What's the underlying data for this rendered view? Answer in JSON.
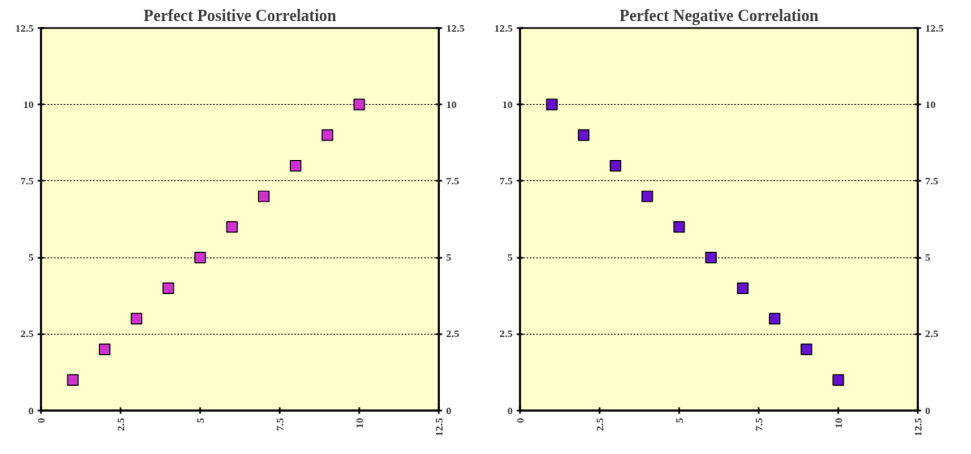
{
  "chart_data": [
    {
      "type": "scatter",
      "title": "Perfect Positive Correlation",
      "x": [
        1,
        2,
        3,
        4,
        5,
        6,
        7,
        8,
        9,
        10
      ],
      "series": [
        {
          "color": "#cc33cc",
          "values": [
            1,
            2,
            3,
            4,
            5,
            6,
            7,
            8,
            9,
            10
          ]
        }
      ],
      "xlim": [
        0,
        12.5
      ],
      "xticks": [
        0,
        2.5,
        5,
        7.5,
        10,
        12.5
      ],
      "ylim": [
        0,
        12.5
      ],
      "yticks": [
        0,
        2.5,
        5,
        7.5,
        10,
        12.5
      ],
      "y2lim": [
        0,
        12.5
      ],
      "y2ticks": [
        0,
        2.5,
        5,
        7.5,
        10,
        12.5
      ],
      "grid": "y",
      "marker": "square"
    },
    {
      "type": "scatter",
      "title": "Perfect Negative Correlation",
      "x": [
        1,
        2,
        3,
        4,
        5,
        6,
        7,
        8,
        9,
        10
      ],
      "series": [
        {
          "color": "#6611cc",
          "values": [
            10,
            9,
            8,
            7,
            6,
            5,
            4,
            3,
            2,
            1
          ]
        }
      ],
      "xlim": [
        0,
        12.5
      ],
      "xticks": [
        0,
        2.5,
        5,
        7.5,
        10,
        12.5
      ],
      "ylim": [
        0,
        12.5
      ],
      "yticks": [
        0,
        2.5,
        5,
        7.5,
        10,
        12.5
      ],
      "y2lim": [
        0,
        12.5
      ],
      "y2ticks": [
        0,
        2.5,
        5,
        7.5,
        10,
        12.5
      ],
      "grid": "y",
      "marker": "square"
    }
  ]
}
